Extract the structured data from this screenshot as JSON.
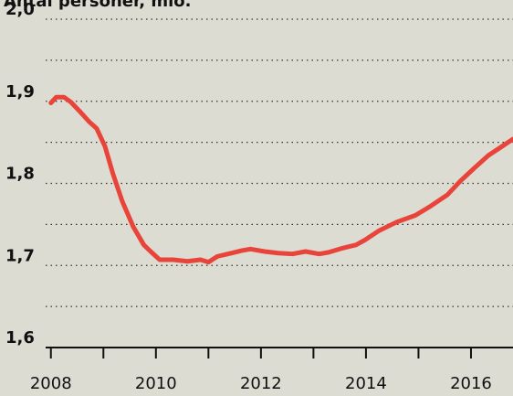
{
  "chart_data": {
    "type": "line",
    "title": "Antal personer, mio.",
    "x": [
      2008.0,
      2008.1,
      2008.25,
      2008.38,
      2008.56,
      2008.73,
      2008.87,
      2009.03,
      2009.18,
      2009.36,
      2009.57,
      2009.77,
      2009.9,
      2010.07,
      2010.33,
      2010.6,
      2010.85,
      2011.0,
      2011.17,
      2011.37,
      2011.63,
      2011.8,
      2012.07,
      2012.33,
      2012.6,
      2012.85,
      2013.11,
      2013.29,
      2013.55,
      2013.81,
      2013.98,
      2014.24,
      2014.59,
      2014.94,
      2015.2,
      2015.55,
      2015.8,
      2016.07,
      2016.33,
      2016.59,
      2016.8
    ],
    "series": [
      {
        "color": "#e8443a",
        "values": [
          1.898,
          1.905,
          1.905,
          1.899,
          1.887,
          1.875,
          1.867,
          1.845,
          1.812,
          1.778,
          1.747,
          1.725,
          1.717,
          1.707,
          1.707,
          1.705,
          1.707,
          1.704,
          1.711,
          1.714,
          1.718,
          1.72,
          1.717,
          1.715,
          1.714,
          1.717,
          1.714,
          1.716,
          1.721,
          1.725,
          1.731,
          1.742,
          1.753,
          1.761,
          1.771,
          1.786,
          1.803,
          1.819,
          1.834,
          1.845,
          1.854
        ]
      }
    ],
    "xlim": [
      2007.9,
      2016.8
    ],
    "ylim": [
      1.6,
      2.0
    ],
    "xticks": [
      2008,
      2010,
      2012,
      2014,
      2016
    ],
    "minor_xticks": [
      2009,
      2011,
      2013,
      2015
    ],
    "yticks": [
      {
        "value": 1.6,
        "label": "1,6"
      },
      {
        "value": 1.7,
        "label": "1,7"
      },
      {
        "value": 1.8,
        "label": "1,8"
      },
      {
        "value": 1.9,
        "label": "1,9"
      },
      {
        "value": 2.0,
        "label": "2,0"
      }
    ],
    "minor_yticks": [
      1.65,
      1.75,
      1.85,
      1.95
    ],
    "grid": true
  }
}
